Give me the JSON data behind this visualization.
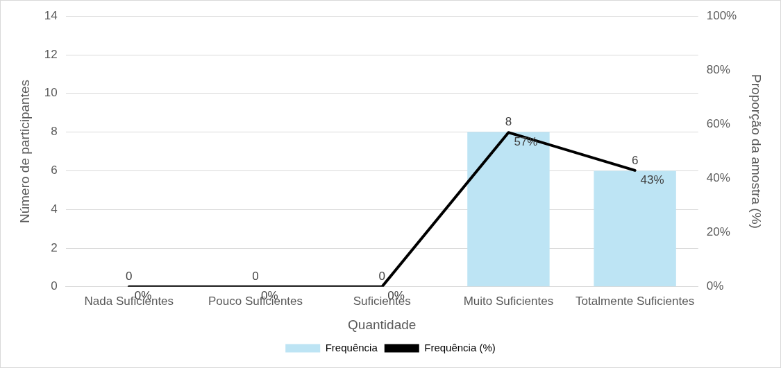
{
  "chart_data": {
    "type": "bar",
    "xlabel": "Quantidade",
    "ylabel": "Número de participantes",
    "y2label": "Proporção da amostra (%)",
    "categories": [
      "Nada Suficientes",
      "Pouco Suficientes",
      "Suficientes",
      "Muito Suficientes",
      "Totalmente Suficientes"
    ],
    "series": [
      {
        "name": "Frequência",
        "color": "#bde4f4",
        "values": [
          0,
          0,
          0,
          8,
          6
        ],
        "value_labels": [
          "0",
          "0",
          "0",
          "8",
          "6"
        ]
      },
      {
        "name": "Frequência (%)",
        "type": "line",
        "axis": "y2",
        "color": "#000000",
        "values": [
          0,
          0,
          0,
          57,
          43
        ],
        "value_labels": [
          "0%",
          "0%",
          "0%",
          "57%",
          "43%"
        ],
        "marker": "none",
        "line_style": "solid"
      }
    ],
    "ylim": [
      0,
      14
    ],
    "yticks": [
      0,
      2,
      4,
      6,
      8,
      10,
      12,
      14
    ],
    "y2lim": [
      0,
      100
    ],
    "y2ticks": [
      {
        "value": 0,
        "label": "0%"
      },
      {
        "value": 20,
        "label": "20%"
      },
      {
        "value": 40,
        "label": "40%"
      },
      {
        "value": 60,
        "label": "60%"
      },
      {
        "value": 80,
        "label": "80%"
      },
      {
        "value": 100,
        "label": "100%"
      }
    ],
    "grid": "y",
    "legend": "bottom"
  }
}
